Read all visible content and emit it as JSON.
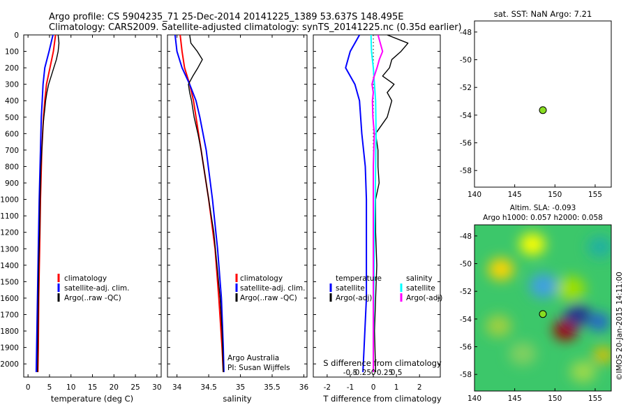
{
  "header": {
    "line1": "Argo profile: CS 5904235_71 25-Dec-2014 20141225_1389 53.637S 148.495E",
    "line2": "Climatology: CARS2009. Satellite-adjusted climatology: synTS_20141225.nc (0.35d earlier)"
  },
  "colors": {
    "climatology": "#ff0000",
    "satellite": "#0000ff",
    "argo": "#000000",
    "satellite_diff_s": "#00ffff",
    "argo_diff_s": "#ff00ff",
    "float_marker": "#88dd22"
  },
  "depth_axis": {
    "ticks": [
      "0",
      "100",
      "200",
      "300",
      "400",
      "500",
      "600",
      "700",
      "800",
      "900",
      "1000",
      "1100",
      "1200",
      "1300",
      "1400",
      "1500",
      "1600",
      "1700",
      "1800",
      "1900",
      "2000"
    ]
  },
  "panel_temp": {
    "xlabel": "temperature (deg C)",
    "xticks": [
      "0",
      "5",
      "10",
      "15",
      "20",
      "25",
      "30"
    ],
    "legend": [
      "climatology",
      "satellite-adj. clim.",
      "Argo(..raw -QC)"
    ]
  },
  "panel_sal": {
    "xlabel": "salinity",
    "xticks": [
      "34",
      "34.5",
      "35",
      "35.5",
      "36"
    ],
    "legend": [
      "climatology",
      "satellite-adj. clim.",
      "Argo(..raw -QC)"
    ],
    "credit1": "Argo Australia",
    "credit2": "PI: Susan Wijffels"
  },
  "panel_diff": {
    "xlabel": "T difference from climatology",
    "top_label": "S difference from climatology",
    "xticks": [
      "-2",
      "-1",
      "0",
      "1",
      "2"
    ],
    "sticks": [
      "-0.5",
      "-0.25",
      "0",
      "0.25",
      "0.5"
    ],
    "legend_t_head": "temperature",
    "legend_s_head": "salinity",
    "legend_t": [
      "satellite",
      "Argo(-adj)"
    ],
    "legend_s": [
      "satellite",
      "Argo(-adj)"
    ]
  },
  "map_sst": {
    "title": "sat. SST: NaN Argo: 7.21",
    "xticks": [
      "140",
      "145",
      "150",
      "155"
    ],
    "yticks": [
      "-48",
      "-50",
      "-52",
      "-54",
      "-56",
      "-58"
    ]
  },
  "map_sla": {
    "title1": "Altim. SLA: -0.093",
    "title2": "Argo h1000: 0.057 h2000: 0.058",
    "xticks": [
      "140",
      "145",
      "150",
      "155"
    ],
    "yticks": [
      "-48",
      "-50",
      "-52",
      "-54",
      "-56",
      "-58"
    ],
    "stamp": "©IMOS 20-Jan-2015 14:11:00"
  },
  "chart_data": [
    {
      "type": "line",
      "xlabel": "temperature (deg C)",
      "ylabel": "",
      "xlim": [
        -1,
        31
      ],
      "ylim": [
        2080,
        0
      ],
      "series": [
        {
          "name": "climatology",
          "depth": [
            0,
            100,
            200,
            300,
            400,
            500,
            700,
            1000,
            1300,
            1600,
            1900,
            2050
          ],
          "values": [
            6.4,
            5.9,
            5.1,
            4.3,
            3.9,
            3.6,
            3.2,
            2.9,
            2.7,
            2.5,
            2.4,
            2.3
          ]
        },
        {
          "name": "satellite-adj. clim.",
          "depth": [
            0,
            100,
            200,
            300,
            400,
            500,
            700,
            1000,
            1300,
            1600,
            1900,
            2050
          ],
          "values": [
            5.8,
            4.9,
            3.9,
            3.5,
            3.3,
            3.1,
            2.9,
            2.6,
            2.4,
            2.2,
            2.0,
            1.9
          ]
        },
        {
          "name": "Argo(..raw -QC)",
          "depth": [
            0,
            50,
            100,
            150,
            200,
            250,
            300,
            350,
            400,
            450,
            500,
            550,
            600,
            700,
            800,
            900,
            1000,
            1200,
            1400,
            1600,
            1800,
            2050
          ],
          "values": [
            7.0,
            7.2,
            7.0,
            6.6,
            6.0,
            5.4,
            4.8,
            4.4,
            4.1,
            3.9,
            3.7,
            3.5,
            3.4,
            3.2,
            3.0,
            2.9,
            2.8,
            2.7,
            2.5,
            2.4,
            2.3,
            2.2
          ]
        }
      ]
    },
    {
      "type": "line",
      "xlabel": "salinity",
      "ylabel": "",
      "xlim": [
        33.85,
        36.05
      ],
      "ylim": [
        2080,
        0
      ],
      "series": [
        {
          "name": "climatology",
          "depth": [
            0,
            100,
            200,
            300,
            400,
            500,
            700,
            1000,
            1300,
            1600,
            1900,
            2050
          ],
          "values": [
            34.05,
            34.08,
            34.12,
            34.2,
            34.26,
            34.3,
            34.38,
            34.5,
            34.6,
            34.66,
            34.71,
            34.73
          ]
        },
        {
          "name": "satellite-adj. clim.",
          "depth": [
            0,
            100,
            200,
            300,
            400,
            500,
            700,
            1000,
            1300,
            1600,
            1900,
            2050
          ],
          "values": [
            33.97,
            34.0,
            34.08,
            34.2,
            34.3,
            34.36,
            34.46,
            34.56,
            34.64,
            34.7,
            34.73,
            34.74
          ]
        },
        {
          "name": "Argo(..raw -QC)",
          "depth": [
            0,
            50,
            100,
            150,
            200,
            250,
            300,
            350,
            400,
            500,
            600,
            700,
            800,
            1000,
            1200,
            1400,
            1600,
            1800,
            2050
          ],
          "values": [
            34.2,
            34.22,
            34.32,
            34.4,
            34.33,
            34.25,
            34.18,
            34.2,
            34.23,
            34.27,
            34.33,
            34.38,
            34.42,
            34.5,
            34.58,
            34.63,
            34.68,
            34.71,
            34.73
          ]
        }
      ]
    },
    {
      "type": "line",
      "xlabel": "T difference from climatology",
      "ylabel": "",
      "xlim": [
        -2.6,
        2.9
      ],
      "ylim": [
        2080,
        0
      ],
      "series": [
        {
          "name": "satellite",
          "depth": [
            0,
            100,
            200,
            300,
            400,
            600,
            800,
            1000,
            1300,
            1600,
            1900,
            2050
          ],
          "values": [
            -0.6,
            -1.0,
            -1.2,
            -0.8,
            -0.6,
            -0.5,
            -0.35,
            -0.3,
            -0.3,
            -0.3,
            -0.4,
            -0.45
          ]
        },
        {
          "name": "Argo(-adj)",
          "depth": [
            0,
            50,
            100,
            150,
            200,
            250,
            300,
            350,
            400,
            500,
            600,
            700,
            800,
            900,
            1000,
            1200,
            1400,
            1600,
            1800,
            2050
          ],
          "values": [
            0.6,
            1.5,
            1.2,
            0.8,
            0.7,
            0.4,
            0.9,
            0.6,
            0.8,
            0.6,
            0.1,
            0.2,
            0.2,
            0.25,
            0.1,
            0.1,
            0.15,
            0.1,
            0.05,
            0.1
          ]
        },
        {
          "name": "satellite (S)",
          "depth": [
            0,
            100,
            200,
            400,
            600,
            800,
            1000,
            1300,
            1600,
            1900,
            2050
          ],
          "values": [
            -0.05,
            -0.04,
            0.0,
            0.05,
            0.06,
            0.05,
            0.04,
            0.02,
            0.01,
            0.0,
            0.0
          ]
        },
        {
          "name": "Argo(-adj) (S)",
          "depth": [
            0,
            50,
            100,
            150,
            200,
            250,
            300,
            350,
            400,
            500,
            600,
            700,
            800,
            1000,
            1200,
            1400,
            1600,
            1800,
            2050
          ],
          "values": [
            0.1,
            0.15,
            0.2,
            0.13,
            0.08,
            0.02,
            -0.03,
            0.0,
            -0.02,
            -0.01,
            0.02,
            0.01,
            0.0,
            0.0,
            0.0,
            0.0,
            0.0,
            0.0,
            0.0
          ]
        }
      ]
    },
    {
      "type": "scatter",
      "title": "sat. SST: NaN Argo: 7.21",
      "xlim": [
        140,
        157
      ],
      "ylim": [
        -59.2,
        -47.2
      ],
      "points": [
        {
          "x": 148.5,
          "y": -53.64
        }
      ]
    },
    {
      "type": "heatmap",
      "title": "Altim. SLA: -0.093",
      "xlim": [
        140,
        157
      ],
      "ylim": [
        -59.2,
        -47.2
      ],
      "points": [
        {
          "x": 148.5,
          "y": -53.64
        }
      ],
      "blobs": [
        {
          "lon": 151.3,
          "lat": -54.8,
          "color": "#a00000",
          "r": 1.5
        },
        {
          "lon": 152.8,
          "lat": -53.7,
          "color": "#203090",
          "r": 1.6
        },
        {
          "lon": 155.5,
          "lat": -54.2,
          "color": "#2060d0",
          "r": 1.3
        },
        {
          "lon": 148.6,
          "lat": -51.6,
          "color": "#40a0e0",
          "r": 1.8
        },
        {
          "lon": 143.3,
          "lat": -50.4,
          "color": "#ffd400",
          "r": 1.6
        },
        {
          "lon": 147.2,
          "lat": -48.6,
          "color": "#ffff00",
          "r": 1.6
        },
        {
          "lon": 152.0,
          "lat": -51.8,
          "color": "#a0e000",
          "r": 1.8
        },
        {
          "lon": 143.0,
          "lat": -54.5,
          "color": "#a0d040",
          "r": 1.6
        },
        {
          "lon": 155.6,
          "lat": -48.8,
          "color": "#20b0a0",
          "r": 1.6
        },
        {
          "lon": 156.0,
          "lat": -56.6,
          "color": "#e0c000",
          "r": 1.2
        },
        {
          "lon": 146.0,
          "lat": -56.5,
          "color": "#80d060",
          "r": 1.7
        },
        {
          "lon": 153.5,
          "lat": -57.8,
          "color": "#9cd94c",
          "r": 1.6
        }
      ]
    }
  ]
}
